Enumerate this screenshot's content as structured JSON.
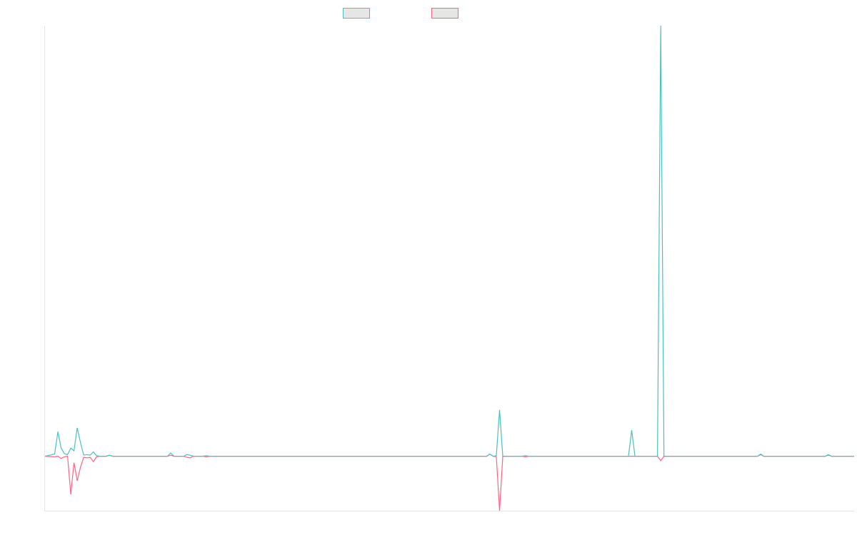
{
  "chart_data": {
    "type": "line",
    "title": "",
    "xlabel": "",
    "ylabel": "",
    "legend_position": "top-center",
    "grid": false,
    "x_count": 252,
    "ylim": [
      -100,
      790
    ],
    "series": [
      {
        "name": "",
        "color": "#4bc0c0",
        "points": [
          [
            0,
            0
          ],
          [
            3,
            4
          ],
          [
            4,
            45
          ],
          [
            5,
            15
          ],
          [
            6,
            5
          ],
          [
            7,
            3
          ],
          [
            8,
            15
          ],
          [
            9,
            10
          ],
          [
            10,
            52
          ],
          [
            11,
            25
          ],
          [
            12,
            2
          ],
          [
            13,
            3
          ],
          [
            14,
            2
          ],
          [
            15,
            8
          ],
          [
            16,
            1
          ],
          [
            17,
            0
          ],
          [
            19,
            0
          ],
          [
            20,
            2
          ],
          [
            21,
            0
          ],
          [
            38,
            0
          ],
          [
            39,
            6
          ],
          [
            40,
            0
          ],
          [
            43,
            0
          ],
          [
            44,
            3
          ],
          [
            45,
            2
          ],
          [
            46,
            0
          ],
          [
            49,
            0
          ],
          [
            50,
            1
          ],
          [
            51,
            0
          ],
          [
            137,
            0
          ],
          [
            138,
            4
          ],
          [
            139,
            0
          ],
          [
            140,
            0
          ],
          [
            139,
            0
          ],
          [
            140,
            1
          ],
          [
            141,
            85
          ],
          [
            142,
            0
          ],
          [
            148,
            0
          ],
          [
            149,
            1
          ],
          [
            150,
            0
          ],
          [
            181,
            0
          ],
          [
            182,
            48
          ],
          [
            183,
            0
          ],
          [
            190,
            0
          ],
          [
            191,
            790
          ],
          [
            192,
            0
          ],
          [
            221,
            0
          ],
          [
            222,
            4
          ],
          [
            223,
            0
          ],
          [
            242,
            0
          ],
          [
            243,
            3
          ],
          [
            244,
            0
          ],
          [
            251,
            0
          ]
        ]
      },
      {
        "name": "",
        "color": "#ff6384",
        "points": [
          [
            0,
            0
          ],
          [
            3,
            -1
          ],
          [
            4,
            0
          ],
          [
            5,
            -4
          ],
          [
            6,
            -1
          ],
          [
            7,
            0
          ],
          [
            8,
            -70
          ],
          [
            9,
            -12
          ],
          [
            10,
            -45
          ],
          [
            11,
            -20
          ],
          [
            12,
            -2
          ],
          [
            13,
            -3
          ],
          [
            14,
            -2
          ],
          [
            15,
            -10
          ],
          [
            16,
            -1
          ],
          [
            17,
            0
          ],
          [
            19,
            0
          ],
          [
            20,
            2
          ],
          [
            21,
            0
          ],
          [
            38,
            0
          ],
          [
            39,
            2
          ],
          [
            40,
            0
          ],
          [
            43,
            0
          ],
          [
            44,
            -2
          ],
          [
            45,
            -3
          ],
          [
            46,
            0
          ],
          [
            49,
            0
          ],
          [
            50,
            -1
          ],
          [
            51,
            0
          ],
          [
            137,
            0
          ],
          [
            138,
            4
          ],
          [
            139,
            0
          ],
          [
            140,
            -1
          ],
          [
            141,
            -100
          ],
          [
            142,
            0
          ],
          [
            148,
            0
          ],
          [
            149,
            -1
          ],
          [
            150,
            0
          ],
          [
            181,
            0
          ],
          [
            182,
            0
          ],
          [
            190,
            0
          ],
          [
            191,
            -8
          ],
          [
            192,
            0
          ],
          [
            221,
            0
          ],
          [
            222,
            3
          ],
          [
            223,
            0
          ],
          [
            242,
            0
          ],
          [
            243,
            2
          ],
          [
            244,
            0
          ],
          [
            251,
            0
          ]
        ]
      }
    ]
  }
}
